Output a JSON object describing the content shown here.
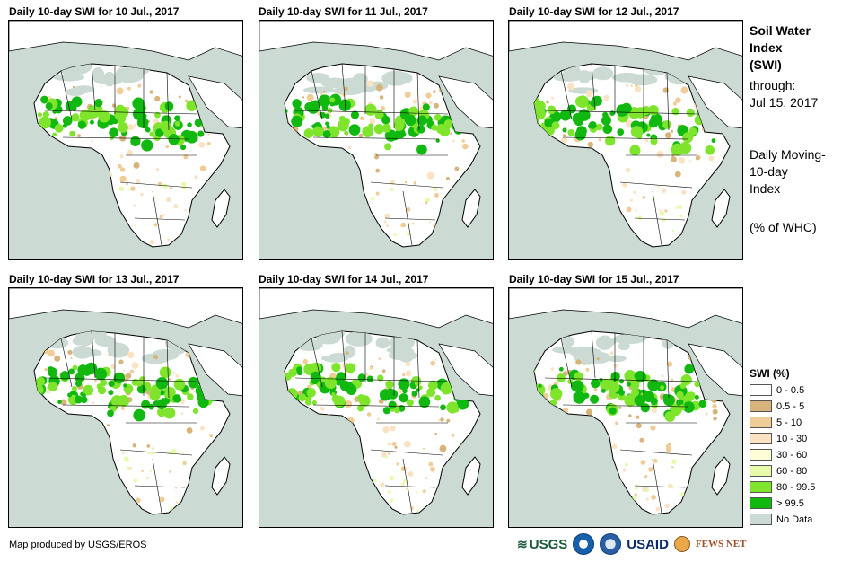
{
  "panels": [
    {
      "title": "Daily 10-day SWI for 10 Jul., 2017"
    },
    {
      "title": "Daily 10-day SWI for 11 Jul., 2017"
    },
    {
      "title": "Daily 10-day SWI for 12 Jul., 2017"
    },
    {
      "title": "Daily 10-day SWI for 13 Jul., 2017"
    },
    {
      "title": "Daily 10-day SWI for 14 Jul., 2017"
    },
    {
      "title": "Daily 10-day SWI for 15 Jul., 2017"
    }
  ],
  "sidebar": {
    "title_line1": "Soil Water",
    "title_line2": "Index",
    "title_line3": "(SWI)",
    "through_label": "through:",
    "through_date": "Jul 15, 2017",
    "desc_line1": "Daily Moving-",
    "desc_line2": "10-day",
    "desc_line3": "Index",
    "units": "(% of WHC)"
  },
  "legend": {
    "title": "SWI (%)",
    "items": [
      {
        "label": "0 - 0.5",
        "color": "#ffffff"
      },
      {
        "label": "0.5 - 5",
        "color": "#d8b47c"
      },
      {
        "label": "5 - 10",
        "color": "#f0cc96"
      },
      {
        "label": "10 - 30",
        "color": "#fbe2c2"
      },
      {
        "label": "30 - 60",
        "color": "#fdfdd6"
      },
      {
        "label": "60 - 80",
        "color": "#e6fcaa"
      },
      {
        "label": "80 - 99.5",
        "color": "#7ee42c"
      },
      {
        "label": "> 99.5",
        "color": "#10b810"
      },
      {
        "label": "No Data",
        "color": "#cbdbd3"
      }
    ]
  },
  "footer": {
    "credit": "Map produced by USGS/EROS",
    "logo_usgs": "USGS",
    "logo_usaid": "USAID",
    "logo_fews": "FEWS NET"
  }
}
